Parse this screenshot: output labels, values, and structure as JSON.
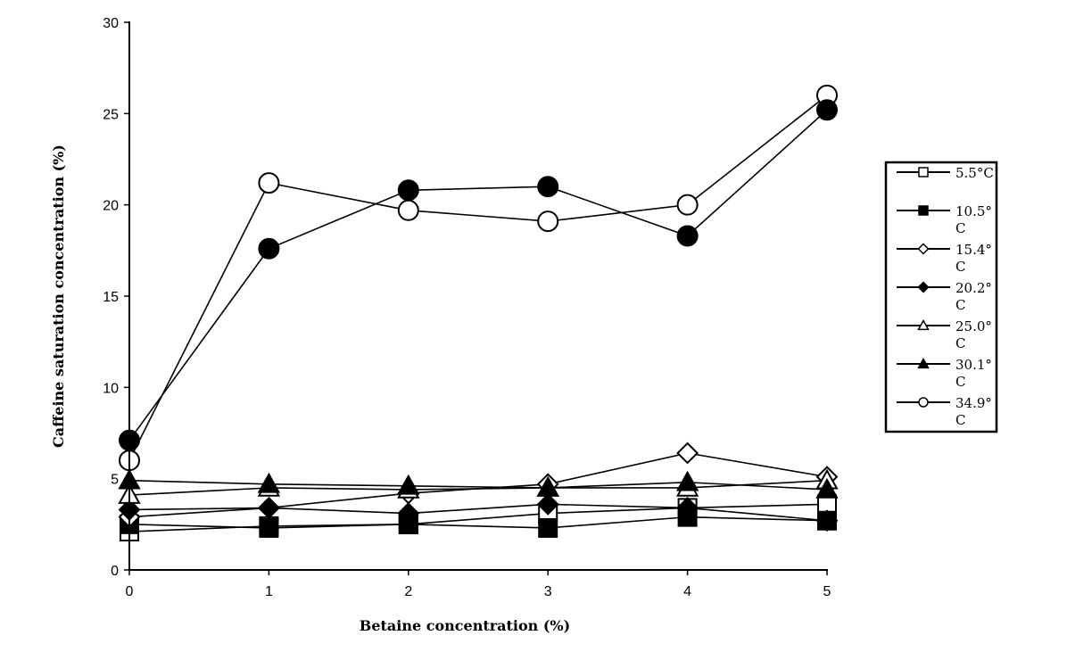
{
  "chart_data": {
    "type": "line",
    "xlabel": "Betaine concentration (%)",
    "ylabel": "Caffeine saturation concentration (%)",
    "x": [
      0,
      1,
      2,
      3,
      4,
      5
    ],
    "xlim": [
      0,
      5
    ],
    "ylim": [
      0,
      30
    ],
    "xticks": [
      "0",
      "1",
      "2",
      "3",
      "4",
      "5"
    ],
    "yticks": [
      "0",
      "5",
      "10",
      "15",
      "20",
      "25",
      "30"
    ],
    "grid": false,
    "legend_position": "right",
    "series": [
      {
        "name": "5.5°C",
        "marker": "square",
        "fill": "open",
        "values": [
          2.1,
          2.4,
          2.5,
          3.1,
          3.4,
          3.6
        ]
      },
      {
        "name": "10.5°C",
        "marker": "square",
        "fill": "filled",
        "values": [
          2.5,
          2.3,
          2.5,
          2.3,
          2.9,
          2.7
        ]
      },
      {
        "name": "15.4°C",
        "marker": "diamond",
        "fill": "open",
        "values": [
          2.9,
          3.4,
          4.2,
          4.7,
          6.4,
          5.1
        ]
      },
      {
        "name": "20.2°C",
        "marker": "diamond",
        "fill": "filled",
        "values": [
          3.3,
          3.4,
          3.1,
          3.6,
          3.4,
          2.7
        ]
      },
      {
        "name": "25.0°C",
        "marker": "triangle",
        "fill": "open",
        "values": [
          4.1,
          4.5,
          4.4,
          4.5,
          4.5,
          4.9
        ]
      },
      {
        "name": "30.1°C",
        "marker": "triangle",
        "fill": "filled",
        "values": [
          4.9,
          4.7,
          4.6,
          4.5,
          4.8,
          4.4
        ]
      },
      {
        "name": "34.9°C",
        "marker": "circle",
        "fill": "open",
        "values": [
          6.0,
          21.2,
          19.7,
          19.1,
          20.0,
          26.0
        ]
      },
      {
        "name": "",
        "marker": "circle",
        "fill": "filled",
        "values": [
          7.1,
          17.6,
          20.8,
          21.0,
          18.3,
          25.2
        ]
      }
    ]
  },
  "legend": [
    {
      "line1": "5.5°C",
      "line2": ""
    },
    {
      "line1": "10.5°",
      "line2": "C"
    },
    {
      "line1": "15.4°",
      "line2": "C"
    },
    {
      "line1": "20.2°",
      "line2": "C"
    },
    {
      "line1": "25.0°",
      "line2": "C"
    },
    {
      "line1": "30.1°",
      "line2": "C"
    },
    {
      "line1": "34.9°",
      "line2": "C"
    }
  ]
}
